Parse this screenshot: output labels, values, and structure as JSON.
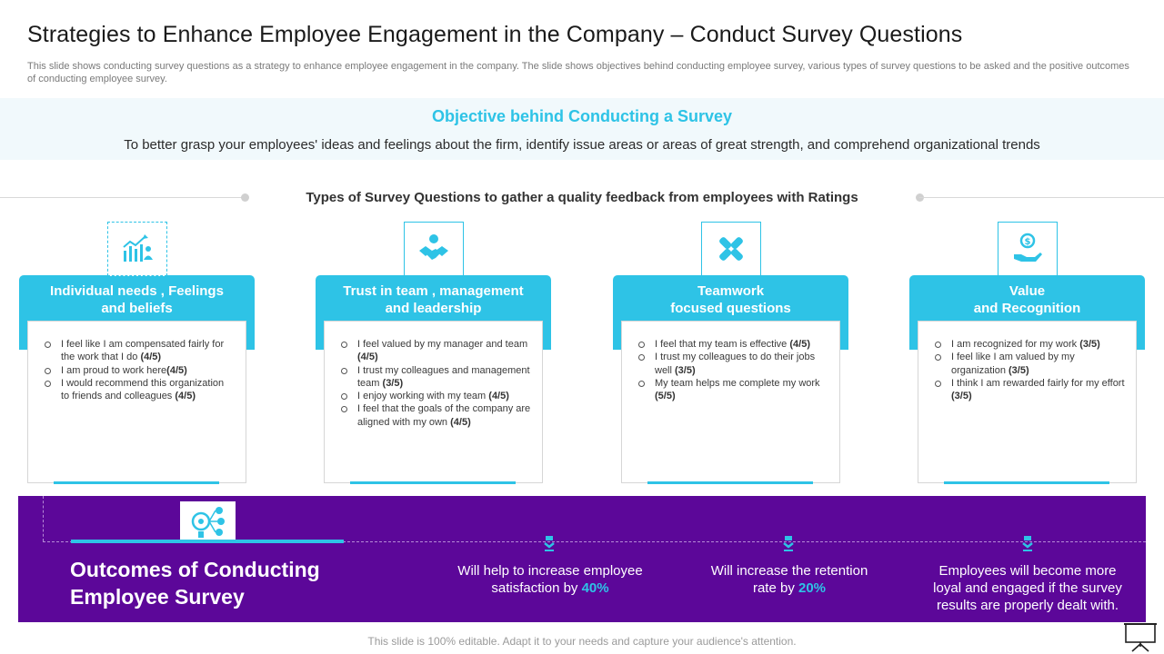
{
  "title": "Strategies to Enhance Employee Engagement in the Company – Conduct Survey Questions",
  "subtitle": "This slide shows conducting survey questions as a strategy to enhance employee engagement in the company. The slide shows objectives behind conducting employee survey, various types of survey questions to be asked and the positive outcomes of conducting employee survey.",
  "objective": {
    "heading": "Objective behind Conducting a Survey",
    "text": "To better grasp your employees' ideas and feelings about the firm, identify issue areas or areas of great strength,  and comprehend organizational trends"
  },
  "types_heading": "Types of Survey Questions  to gather a quality feedback from employees with Ratings",
  "cards": [
    {
      "icon": "growth-chart-icon",
      "title_line1": "Individual needs , Feelings",
      "title_line2": "and beliefs",
      "items": [
        {
          "text": "I feel like I am compensated fairly for the work that I do",
          "rating": "(4/5)"
        },
        {
          "text": "I am proud to work here",
          "rating": "(4/5)"
        },
        {
          "text": "I would recommend this organization to friends and colleagues",
          "rating": "(4/5)"
        }
      ]
    },
    {
      "icon": "handshake-icon",
      "title_line1": "Trust in team , management",
      "title_line2": "and leadership",
      "items": [
        {
          "text": "I feel valued by my manager and team",
          "rating": "(4/5)"
        },
        {
          "text": "I trust my colleagues and management team",
          "rating": "(3/5)"
        },
        {
          "text": "I enjoy working with my team",
          "rating": "(4/5)"
        },
        {
          "text": "I feel that the goals of the company are aligned with my own",
          "rating": "(4/5)"
        }
      ]
    },
    {
      "icon": "teamwork-hands-icon",
      "title_line1": "Teamwork",
      "title_line2": "focused  questions",
      "items": [
        {
          "text": "I feel that my team is effective",
          "rating": "(4/5)"
        },
        {
          "text": "I trust my colleagues to do their jobs well",
          "rating": "(3/5)"
        },
        {
          "text": "My team helps me  complete my work",
          "rating": "(5/5)"
        }
      ]
    },
    {
      "icon": "money-hand-icon",
      "title_line1": "Value",
      "title_line2": "and Recognition",
      "items": [
        {
          "text": "I am recognized for my work",
          "rating": "(3/5)"
        },
        {
          "text": "I feel like I am valued by my organization",
          "rating": "(3/5)"
        },
        {
          "text": "I think I am  rewarded fairly for my effort",
          "rating": "(3/5)"
        }
      ]
    }
  ],
  "outcomes": {
    "icon": "survey-network-icon",
    "title_line1": "Outcomes of Conducting",
    "title_line2": "Employee Survey",
    "items": [
      {
        "line1": "Will help to increase employee",
        "line2_prefix": "satisfaction by ",
        "highlight": "40%",
        "line3": ""
      },
      {
        "line1": "Will increase the retention",
        "line2_prefix": "rate by ",
        "highlight": "20%",
        "line3": ""
      },
      {
        "line1": "Employees will become more",
        "line2_prefix": "loyal and engaged if the survey",
        "highlight": "",
        "line3": "results are properly dealt with."
      }
    ]
  },
  "footer": "This slide is 100% editable. Adapt it to your needs and capture your audience's attention.",
  "colors": {
    "accent": "#2ec3e6",
    "purple": "#5c0799"
  }
}
